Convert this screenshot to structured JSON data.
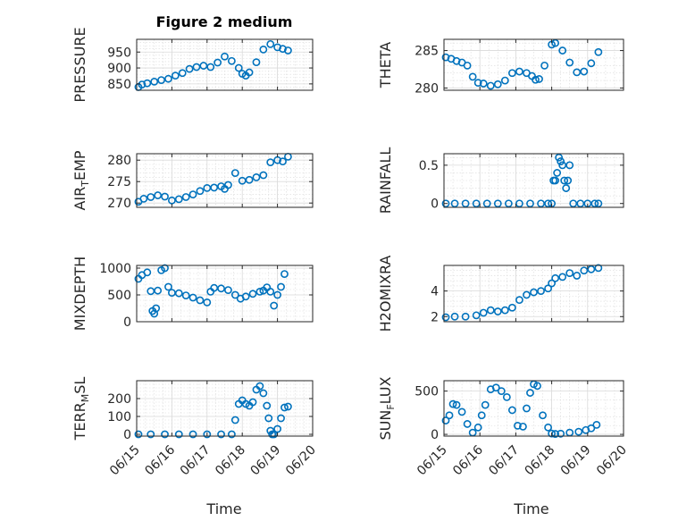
{
  "figure": {
    "title": "Figure 2 medium",
    "xlabel": "Time",
    "x_ticks": [
      "06/15",
      "06/16",
      "06/17",
      "06/18",
      "06/19",
      "06/20"
    ],
    "marker_color": "#0072bd"
  },
  "chart_data": [
    {
      "type": "scatter",
      "name": "PRESSURE",
      "ylabel": "PRESSURE",
      "xlim": [
        "06/15",
        "06/20"
      ],
      "ylim": [
        830,
        990
      ],
      "yticks": [
        850,
        900,
        950
      ],
      "grid": true,
      "x_days": [
        0.05,
        0.15,
        0.3,
        0.5,
        0.7,
        0.9,
        1.1,
        1.3,
        1.5,
        1.7,
        1.9,
        2.1,
        2.3,
        2.5,
        2.7,
        2.9,
        3.0,
        3.1,
        3.2,
        3.4,
        3.6,
        3.8,
        4.0,
        4.15,
        4.3
      ],
      "y": [
        840,
        848,
        852,
        857,
        862,
        866,
        876,
        884,
        897,
        903,
        907,
        903,
        917,
        936,
        922,
        900,
        882,
        876,
        886,
        918,
        958,
        975,
        965,
        960,
        955
      ]
    },
    {
      "type": "scatter",
      "name": "THETA",
      "ylabel": "THETA",
      "xlim": [
        "06/15",
        "06/20"
      ],
      "ylim": [
        279.7,
        286.5
      ],
      "yticks": [
        280,
        285
      ],
      "grid": true,
      "x_days": [
        0.05,
        0.2,
        0.35,
        0.5,
        0.65,
        0.8,
        0.95,
        1.1,
        1.3,
        1.5,
        1.7,
        1.9,
        2.1,
        2.3,
        2.45,
        2.55,
        2.65,
        2.8,
        3.0,
        3.1,
        3.3,
        3.5,
        3.7,
        3.9,
        4.1,
        4.3
      ],
      "y": [
        284.1,
        283.9,
        283.6,
        283.4,
        283.0,
        281.5,
        280.7,
        280.6,
        280.3,
        280.5,
        281.0,
        282.0,
        282.2,
        282.0,
        281.6,
        281.1,
        281.2,
        283.0,
        285.8,
        286.0,
        285.0,
        283.4,
        282.1,
        282.2,
        283.3,
        284.8
      ]
    },
    {
      "type": "scatter",
      "name": "AIR_TEMP",
      "ylabel": "AIR_TEMP",
      "xlim": [
        "06/15",
        "06/20"
      ],
      "ylim": [
        269,
        281.5
      ],
      "yticks": [
        270,
        275,
        280
      ],
      "grid": true,
      "x_days": [
        0.05,
        0.2,
        0.4,
        0.6,
        0.8,
        1.0,
        1.2,
        1.4,
        1.6,
        1.8,
        2.0,
        2.2,
        2.4,
        2.5,
        2.6,
        2.8,
        3.0,
        3.2,
        3.4,
        3.6,
        3.8,
        4.0,
        4.15,
        4.3
      ],
      "y": [
        270.3,
        271.0,
        271.4,
        271.8,
        271.5,
        270.6,
        270.9,
        271.4,
        272.0,
        272.8,
        273.5,
        273.6,
        273.9,
        273.3,
        274.2,
        277.0,
        275.2,
        275.4,
        276.0,
        276.5,
        279.5,
        280.0,
        279.7,
        280.8
      ]
    },
    {
      "type": "scatter",
      "name": "RAINFALL",
      "ylabel": "RAINFALL",
      "xlim": [
        "06/15",
        "06/20"
      ],
      "ylim": [
        -0.05,
        0.65
      ],
      "yticks": [
        0,
        0.5
      ],
      "grid": true,
      "x_days": [
        0.05,
        0.3,
        0.6,
        0.9,
        1.2,
        1.5,
        1.8,
        2.1,
        2.4,
        2.7,
        2.9,
        3.0,
        3.05,
        3.1,
        3.15,
        3.2,
        3.25,
        3.3,
        3.35,
        3.4,
        3.45,
        3.5,
        3.6,
        3.8,
        4.0,
        4.2,
        4.3
      ],
      "y": [
        0,
        0,
        0,
        0,
        0,
        0,
        0,
        0,
        0,
        0,
        0,
        0,
        0.3,
        0.3,
        0.4,
        0.6,
        0.55,
        0.5,
        0.3,
        0.2,
        0.3,
        0.5,
        0,
        0,
        0,
        0,
        0
      ]
    },
    {
      "type": "scatter",
      "name": "MIXDEPTH",
      "ylabel": "MIXDEPTH",
      "xlim": [
        "06/15",
        "06/20"
      ],
      "ylim": [
        0,
        1050
      ],
      "yticks": [
        0,
        500,
        1000
      ],
      "grid": true,
      "x_days": [
        0.05,
        0.15,
        0.3,
        0.4,
        0.45,
        0.5,
        0.55,
        0.6,
        0.7,
        0.8,
        0.9,
        1.0,
        1.2,
        1.4,
        1.6,
        1.8,
        2.0,
        2.1,
        2.2,
        2.4,
        2.6,
        2.8,
        2.95,
        3.1,
        3.3,
        3.5,
        3.6,
        3.7,
        3.8,
        3.9,
        4.0,
        4.1,
        4.2
      ],
      "y": [
        800,
        870,
        920,
        570,
        200,
        150,
        250,
        580,
        960,
        1000,
        650,
        540,
        530,
        490,
        450,
        400,
        360,
        560,
        630,
        620,
        590,
        500,
        430,
        470,
        520,
        560,
        580,
        640,
        560,
        300,
        500,
        650,
        890
      ]
    },
    {
      "type": "scatter",
      "name": "H2OMIXRA",
      "ylabel": "H2OMIXRA",
      "xlim": [
        "06/15",
        "06/20"
      ],
      "ylim": [
        1.6,
        6.0
      ],
      "yticks": [
        2,
        4
      ],
      "grid": true,
      "x_days": [
        0.05,
        0.3,
        0.6,
        0.9,
        1.1,
        1.3,
        1.5,
        1.7,
        1.9,
        2.1,
        2.3,
        2.5,
        2.7,
        2.9,
        3.0,
        3.1,
        3.3,
        3.5,
        3.7,
        3.9,
        4.1,
        4.3
      ],
      "y": [
        1.95,
        2.0,
        2.0,
        2.1,
        2.3,
        2.5,
        2.4,
        2.5,
        2.7,
        3.3,
        3.7,
        3.9,
        4.0,
        4.2,
        4.6,
        5.0,
        5.1,
        5.4,
        5.2,
        5.6,
        5.7,
        5.8
      ]
    },
    {
      "type": "scatter",
      "name": "TERR_MSL",
      "ylabel": "TERR_MSL",
      "xlim": [
        "06/15",
        "06/20"
      ],
      "ylim": [
        -10,
        300
      ],
      "yticks": [
        0,
        100,
        200
      ],
      "grid": true,
      "x_days": [
        0.05,
        0.4,
        0.8,
        1.2,
        1.6,
        2.0,
        2.4,
        2.7,
        2.8,
        2.9,
        3.0,
        3.1,
        3.2,
        3.3,
        3.4,
        3.5,
        3.6,
        3.7,
        3.75,
        3.8,
        3.85,
        3.9,
        4.0,
        4.1,
        4.2,
        4.3
      ],
      "y": [
        0,
        0,
        0,
        0,
        0,
        0,
        0,
        0,
        80,
        170,
        190,
        170,
        160,
        180,
        250,
        270,
        230,
        160,
        90,
        20,
        0,
        0,
        30,
        90,
        150,
        155
      ]
    },
    {
      "type": "scatter",
      "name": "SUN_FLUX",
      "ylabel": "SUN_FLUX",
      "xlim": [
        "06/15",
        "06/20"
      ],
      "ylim": [
        -20,
        620
      ],
      "yticks": [
        0,
        500
      ],
      "grid": true,
      "x_days": [
        0.05,
        0.15,
        0.25,
        0.35,
        0.5,
        0.65,
        0.8,
        0.95,
        1.05,
        1.15,
        1.3,
        1.45,
        1.6,
        1.75,
        1.9,
        2.05,
        2.2,
        2.3,
        2.4,
        2.5,
        2.6,
        2.75,
        2.9,
        3.0,
        3.1,
        3.25,
        3.5,
        3.75,
        3.95,
        4.1,
        4.25
      ],
      "y": [
        160,
        220,
        350,
        340,
        260,
        120,
        20,
        80,
        220,
        340,
        520,
        540,
        500,
        430,
        280,
        100,
        90,
        300,
        480,
        580,
        560,
        220,
        80,
        10,
        5,
        8,
        20,
        30,
        50,
        70,
        110
      ]
    }
  ]
}
